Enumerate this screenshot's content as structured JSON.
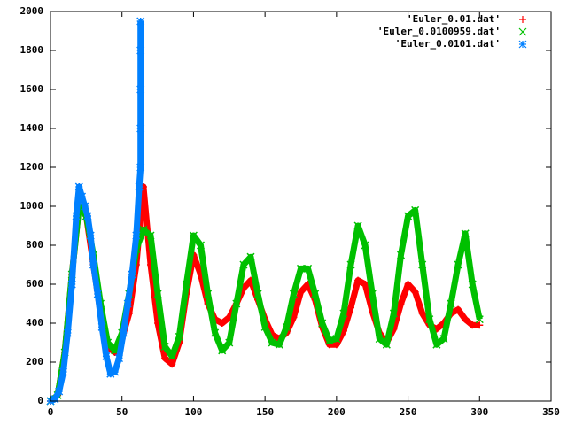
{
  "chart_data": {
    "type": "scatter",
    "xlim": [
      0,
      350
    ],
    "xticks": [
      0,
      50,
      100,
      150,
      200,
      250,
      300,
      350
    ],
    "ylim": [
      0,
      2000
    ],
    "yticks": [
      0,
      200,
      400,
      600,
      800,
      1000,
      1200,
      1400,
      1600,
      1800,
      2000
    ],
    "legend": "top-right",
    "series": [
      {
        "name": "'Euler_0.01.dat'",
        "color": "#ff0000",
        "marker": "+",
        "x": [
          0,
          5,
          10,
          15,
          20,
          25,
          30,
          35,
          40,
          45,
          50,
          55,
          60,
          65,
          70,
          75,
          80,
          85,
          90,
          95,
          100,
          105,
          110,
          115,
          120,
          125,
          130,
          135,
          140,
          145,
          150,
          155,
          160,
          165,
          170,
          175,
          180,
          185,
          190,
          195,
          200,
          205,
          210,
          215,
          220,
          225,
          230,
          235,
          240,
          245,
          250,
          255,
          260,
          265,
          270,
          275,
          280,
          285,
          290,
          295,
          300
        ],
        "values": [
          0,
          30,
          250,
          650,
          1000,
          950,
          700,
          450,
          280,
          250,
          320,
          450,
          700,
          1100,
          700,
          400,
          220,
          190,
          300,
          550,
          750,
          650,
          500,
          420,
          400,
          430,
          500,
          580,
          620,
          520,
          420,
          340,
          320,
          350,
          430,
          560,
          600,
          520,
          380,
          290,
          290,
          360,
          480,
          620,
          600,
          460,
          350,
          300,
          370,
          500,
          600,
          560,
          450,
          390,
          370,
          400,
          450,
          470,
          420,
          390,
          390
        ]
      },
      {
        "name": "'Euler_0.0100959.dat'",
        "color": "#00c000",
        "marker": "x",
        "x": [
          0,
          5,
          10,
          15,
          20,
          25,
          30,
          35,
          40,
          45,
          50,
          55,
          60,
          65,
          70,
          75,
          80,
          85,
          90,
          95,
          100,
          105,
          110,
          115,
          120,
          125,
          130,
          135,
          140,
          145,
          150,
          155,
          160,
          165,
          170,
          175,
          180,
          185,
          190,
          195,
          200,
          205,
          210,
          215,
          220,
          225,
          230,
          235,
          240,
          245,
          250,
          255,
          260,
          265,
          270,
          275,
          280,
          285,
          290,
          295,
          300
        ],
        "values": [
          0,
          30,
          250,
          650,
          1000,
          950,
          750,
          500,
          300,
          260,
          350,
          550,
          780,
          880,
          850,
          550,
          280,
          230,
          330,
          600,
          850,
          800,
          550,
          350,
          260,
          300,
          500,
          700,
          740,
          550,
          380,
          300,
          290,
          380,
          550,
          680,
          680,
          550,
          400,
          310,
          320,
          450,
          700,
          900,
          800,
          550,
          320,
          290,
          450,
          750,
          950,
          980,
          700,
          420,
          290,
          320,
          500,
          700,
          860,
          600,
          420
        ]
      },
      {
        "name": "'Euler_0.0101.dat'",
        "color": "#0080ff",
        "marker": "*",
        "x": [
          0,
          3,
          6,
          9,
          12,
          15,
          18,
          20,
          22,
          24,
          26,
          28,
          30,
          33,
          36,
          39,
          42,
          45,
          48,
          51,
          54,
          57,
          60,
          62,
          63,
          63,
          63,
          63,
          63
        ],
        "values": [
          0,
          10,
          50,
          150,
          350,
          600,
          950,
          1100,
          1050,
          1000,
          950,
          850,
          700,
          550,
          380,
          230,
          140,
          150,
          220,
          350,
          500,
          650,
          850,
          1100,
          1200,
          1400,
          1600,
          1800,
          1950
        ]
      }
    ]
  }
}
